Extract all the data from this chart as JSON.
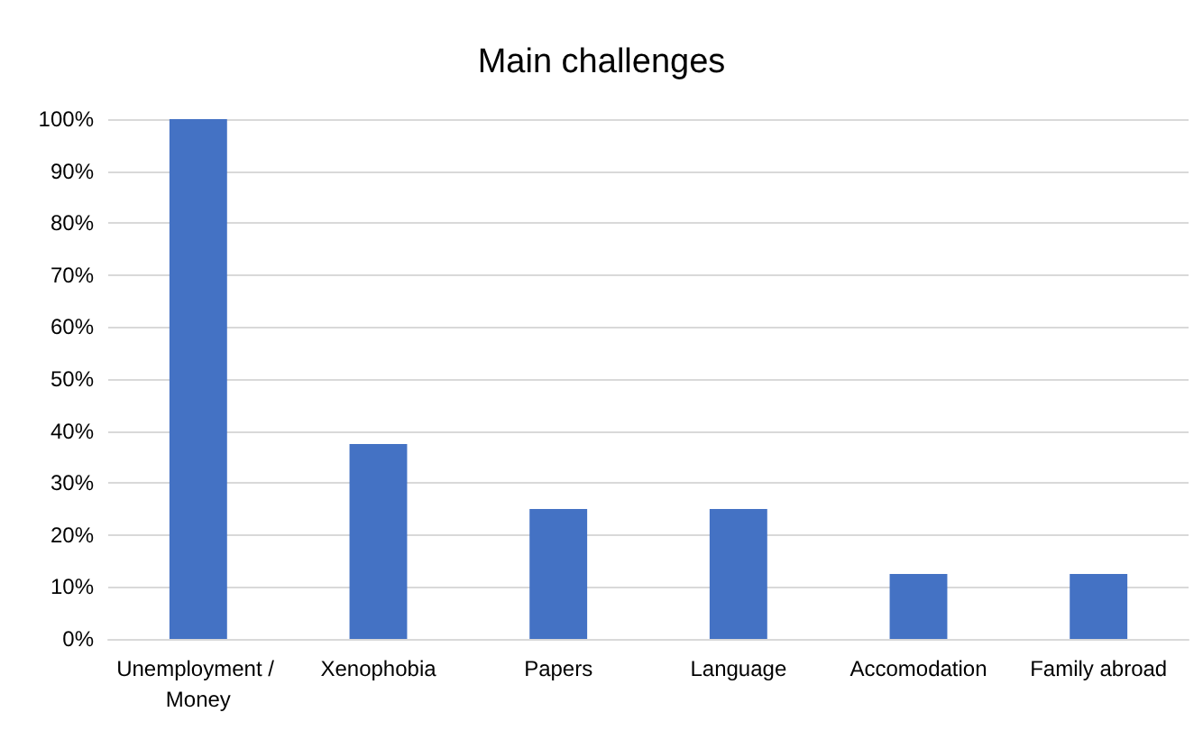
{
  "chart_data": {
    "type": "bar",
    "title": "Main challenges",
    "categories": [
      "Unemployment / Money",
      "Xenophobia",
      "Papers",
      "Language",
      "Accomodation",
      "Family abroad"
    ],
    "values": [
      100,
      37.5,
      25,
      25,
      12.5,
      12.5
    ],
    "color": "#4472c4",
    "ylim": [
      0,
      100
    ],
    "yticks": [
      {
        "value": 0,
        "label": "0%"
      },
      {
        "value": 10,
        "label": "10%"
      },
      {
        "value": 20,
        "label": "20%"
      },
      {
        "value": 30,
        "label": "30%"
      },
      {
        "value": 40,
        "label": "40%"
      },
      {
        "value": 50,
        "label": "50%"
      },
      {
        "value": 60,
        "label": "60%"
      },
      {
        "value": 70,
        "label": "70%"
      },
      {
        "value": 80,
        "label": "80%"
      },
      {
        "value": 90,
        "label": "90%"
      },
      {
        "value": 100,
        "label": "100%"
      }
    ],
    "grid": "y"
  }
}
